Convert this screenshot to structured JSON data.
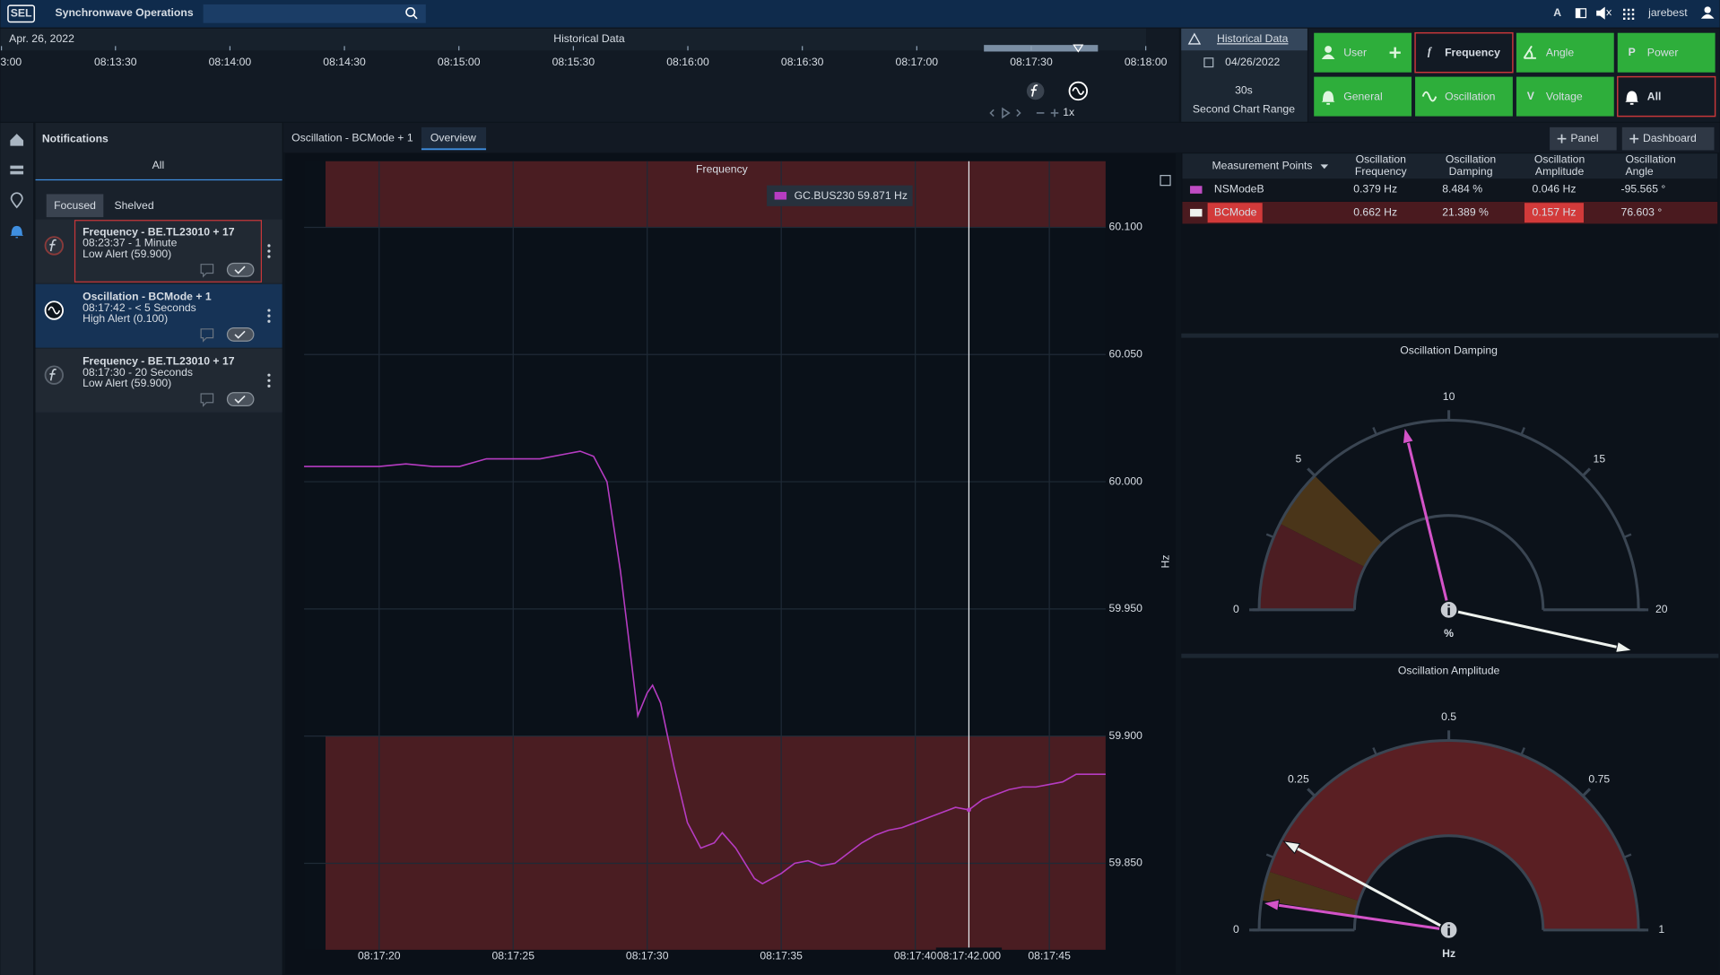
{
  "header": {
    "logo": "SEL",
    "title": "Synchronwave Operations",
    "font_toggle": "A",
    "user": "jarebest"
  },
  "timeline": {
    "date": "Apr. 26, 2022",
    "title": "Historical Data",
    "ticks": [
      "3:00",
      "08:13:30",
      "08:14:00",
      "08:14:30",
      "08:15:00",
      "08:15:30",
      "08:16:00",
      "08:16:30",
      "08:17:00",
      "08:17:30",
      "08:18:00"
    ],
    "speed": "1x"
  },
  "history": {
    "title": "Historical Data",
    "date": "04/26/2022",
    "range": "30s",
    "range_label": "Second Chart Range"
  },
  "filters": [
    {
      "label": "User",
      "icon": "user",
      "plus": true
    },
    {
      "label": "Frequency",
      "icon": "glyph",
      "glyph": "f",
      "selected": true
    },
    {
      "label": "Angle",
      "icon": "angle"
    },
    {
      "label": "Power",
      "icon": "glyph",
      "glyph": "P"
    },
    {
      "label": "General",
      "icon": "bell"
    },
    {
      "label": "Oscillation",
      "icon": "wave"
    },
    {
      "label": "Voltage",
      "icon": "glyph",
      "glyph": "V"
    },
    {
      "label": "All",
      "icon": "bell",
      "selected": true
    }
  ],
  "notifications": {
    "title": "Notifications",
    "scope": "All",
    "tabs": [
      "Focused",
      "Shelved"
    ],
    "active_tab": 0,
    "items": [
      {
        "kind": "frequency",
        "title": "Frequency - BE.TL23010 + 17",
        "time": "08:23:37 - 1 Minute",
        "alert": "Low Alert (59.900)",
        "highlighted": true
      },
      {
        "kind": "oscillation",
        "title": "Oscillation - BCMode + 1",
        "time": "08:17:42 - < 5 Seconds",
        "alert": "High Alert (0.100)",
        "selected": true
      },
      {
        "kind": "frequency",
        "title": "Frequency - BE.TL23010 + 17",
        "time": "08:17:30 - 20 Seconds",
        "alert": "Low Alert (59.900)"
      }
    ]
  },
  "workspace": {
    "tabs": [
      "Oscillation - BCMode + 1",
      "Overview"
    ],
    "active_tab": 1,
    "buttons": [
      "Panel",
      "Dashboard"
    ]
  },
  "table": {
    "header": [
      [
        "Measurement Points"
      ],
      [
        "Oscillation",
        "Frequency"
      ],
      [
        "Oscillation",
        "Damping"
      ],
      [
        "Oscillation",
        "Amplitude"
      ],
      [
        "Oscillation",
        "Angle"
      ]
    ],
    "rows": [
      {
        "name": "NSModeB",
        "color": "#c04cc4",
        "cells": [
          "0.379 Hz",
          "8.484 %",
          "0.046 Hz",
          "-95.565 °"
        ]
      },
      {
        "name": "BCMode",
        "color": "#eef2ee",
        "alert": true,
        "alert_cells": [
          2
        ],
        "cells": [
          "0.662 Hz",
          "21.389 %",
          "0.157 Hz",
          "76.603 °"
        ]
      }
    ]
  },
  "chart_data": [
    {
      "type": "line",
      "title": "Frequency",
      "y_label": "Hz",
      "x": [
        "08:17:17.2",
        "08:17:18",
        "08:17:19",
        "08:17:20",
        "08:17:21",
        "08:17:22",
        "08:17:23",
        "08:17:24",
        "08:17:25",
        "08:17:26",
        "08:17:27",
        "08:17:27.5",
        "08:17:28",
        "08:17:28.5",
        "08:17:29",
        "08:17:29.3",
        "08:17:29.65",
        "08:17:30",
        "08:17:30.2",
        "08:17:30.5",
        "08:17:31",
        "08:17:31.5",
        "08:17:32",
        "08:17:32.5",
        "08:17:32.8",
        "08:17:33.3",
        "08:17:34",
        "08:17:34.3",
        "08:17:35",
        "08:17:35.5",
        "08:17:36",
        "08:17:36.5",
        "08:17:37",
        "08:17:37.5",
        "08:17:38",
        "08:17:38.5",
        "08:17:39",
        "08:17:39.5",
        "08:17:40",
        "08:17:40.5",
        "08:17:41",
        "08:17:41.5",
        "08:17:42",
        "08:17:42.5",
        "08:17:43",
        "08:17:43.5",
        "08:17:44",
        "08:17:44.5",
        "08:17:45",
        "08:17:45.5",
        "08:17:46",
        "08:17:46.5",
        "08:17:47.1"
      ],
      "series": [
        {
          "name": "GC.BUS230",
          "color": "#b63cc2",
          "values": [
            60.006,
            60.006,
            60.006,
            60.006,
            60.007,
            60.006,
            60.006,
            60.009,
            60.009,
            60.009,
            60.011,
            60.012,
            60.01,
            60.0,
            59.965,
            59.939,
            59.908,
            59.917,
            59.92,
            59.913,
            59.888,
            59.866,
            59.856,
            59.858,
            59.862,
            59.856,
            59.844,
            59.842,
            59.846,
            59.85,
            59.851,
            59.849,
            59.85,
            59.854,
            59.858,
            59.861,
            59.863,
            59.864,
            59.866,
            59.868,
            59.87,
            59.872,
            59.871,
            59.875,
            59.877,
            59.879,
            59.88,
            59.88,
            59.881,
            59.882,
            59.885,
            59.885,
            59.885
          ]
        }
      ],
      "xlim": [
        "08:17:17.2",
        "08:17:47.1"
      ],
      "xticks": [
        "08:17:20",
        "08:17:25",
        "08:17:30",
        "08:17:35",
        "08:17:40",
        "08:17:45"
      ],
      "ylim": [
        59.816,
        60.126
      ],
      "yticks": [
        {
          "value": 59.85,
          "label": "59.850"
        },
        {
          "value": 59.9,
          "label": "59.900"
        },
        {
          "value": 59.95,
          "label": "59.950"
        },
        {
          "value": 60,
          "label": "60.000"
        },
        {
          "value": 60.05,
          "label": "60.050"
        },
        {
          "value": 60.1,
          "label": "60.100"
        }
      ],
      "grid": true,
      "alert_bands": {
        "high": 60.1,
        "low": 59.9,
        "start": "08:17:18",
        "color": "#4a1d22"
      },
      "cursor": {
        "x": "08:17:42.000",
        "value": 59.871,
        "unit": "Hz"
      }
    },
    {
      "type": "gauge",
      "title": "Oscillation Damping",
      "unit": "%",
      "lim": [
        0,
        20
      ],
      "ticks": [
        0,
        5,
        10,
        15,
        20
      ],
      "minor_ticks": [
        2.5,
        7.5,
        12.5,
        17.5
      ],
      "bands": [
        {
          "from": 0,
          "to": 3,
          "color": "#4c1d22"
        },
        {
          "from": 3,
          "to": 5,
          "color": "#4a3519"
        }
      ],
      "needles": [
        {
          "color": "#d453c8",
          "value": 8.484
        },
        {
          "color": "#eef2ee",
          "value": 21.389
        }
      ]
    },
    {
      "type": "gauge",
      "title": "Oscillation Amplitude",
      "unit": "Hz",
      "lim": [
        0,
        1
      ],
      "ticks": [
        0,
        0.25,
        0.5,
        0.75,
        1
      ],
      "minor_ticks": [
        0.125,
        0.375,
        0.625,
        0.875
      ],
      "bands": [
        {
          "from": 0.05,
          "to": 0.1,
          "color": "#4a3519"
        },
        {
          "from": 0.1,
          "to": 1,
          "color": "#5a1f23"
        }
      ],
      "needles": [
        {
          "color": "#d453c8",
          "value": 0.046
        },
        {
          "color": "#eef2ee",
          "value": 0.157
        }
      ]
    }
  ]
}
